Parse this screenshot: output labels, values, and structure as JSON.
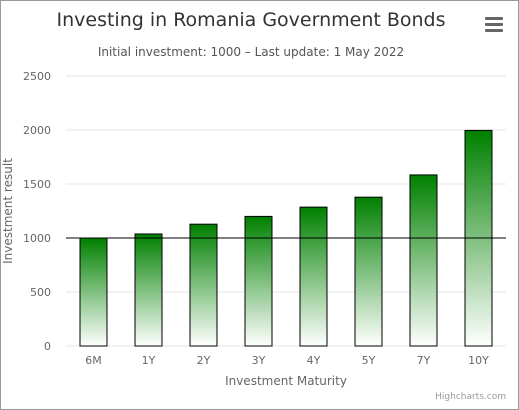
{
  "header": {
    "title": "Investing in Romania Government Bonds",
    "subtitle": "Initial investment: 1000 – Last update: 1 May 2022"
  },
  "menu": {
    "icon": "hamburger-menu-icon"
  },
  "credits": "Highcharts.com",
  "colors": {
    "bar_top": "#008000",
    "bar_bottom": "#ffffff",
    "reference_line": "#000000",
    "grid": "#e6e6e6"
  },
  "chart_data": {
    "type": "bar",
    "title": "Investing in Romania Government Bonds",
    "subtitle": "Initial investment: 1000 – Last update: 1 May 2022",
    "categories": [
      "6M",
      "1Y",
      "2Y",
      "3Y",
      "4Y",
      "5Y",
      "7Y",
      "10Y"
    ],
    "values": [
      1000,
      1037,
      1128,
      1200,
      1286,
      1378,
      1584,
      1996
    ],
    "xlabel": "Investment Maturity",
    "ylabel": "Investment result",
    "ylim": [
      0,
      2500
    ],
    "yticks": [
      0,
      500,
      1000,
      1500,
      2000,
      2500
    ],
    "reference_line": 1000,
    "grid": true,
    "legend": "none"
  }
}
